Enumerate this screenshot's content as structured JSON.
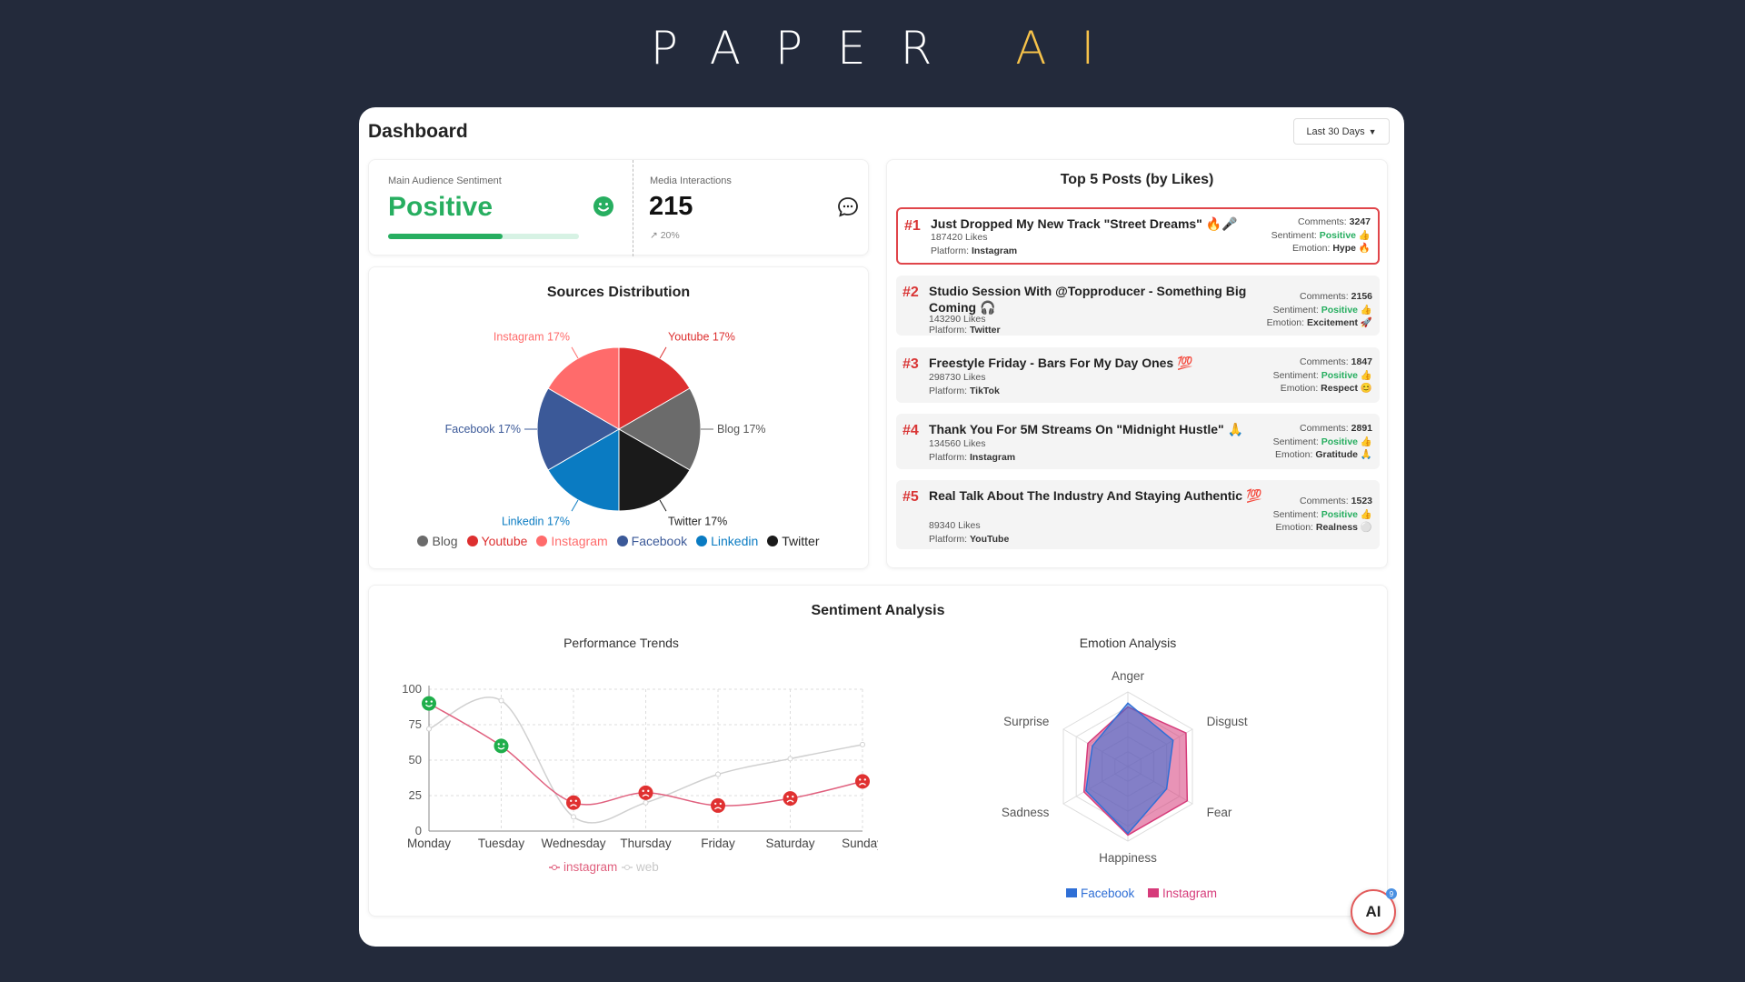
{
  "brand": {
    "name": "PAPER",
    "accent": "AI",
    "accent_color": "#f6c24a"
  },
  "header": {
    "title": "Dashboard",
    "date_range": "Last 30 Days"
  },
  "stats": {
    "sentiment": {
      "label": "Main Audience Sentiment",
      "value": "Positive",
      "icon": "smile-icon",
      "progress": 0.6
    },
    "interactions": {
      "label": "Media Interactions",
      "value": "215",
      "trend": "↗ 20%",
      "icon": "chat-icon"
    }
  },
  "sources": {
    "title": "Sources Distribution",
    "chart_data": {
      "type": "pie",
      "categories": [
        "Blog",
        "Youtube",
        "Instagram",
        "Facebook",
        "Linkedin",
        "Twitter"
      ],
      "values": [
        17,
        17,
        17,
        17,
        17,
        17
      ],
      "slice_labels": [
        "Blog 17%",
        "Youtube 17%",
        "Instagram 17%",
        "Facebook 17%",
        "Linkedin 17%",
        "Twitter 17%"
      ],
      "colors": [
        "#6b6b6b",
        "#dd2f2f",
        "#ff6b6b",
        "#3b5998",
        "#0a7bc2",
        "#1a1a1a"
      ],
      "legend": "bottom"
    }
  },
  "top_posts": {
    "title": "Top 5 Posts (by Likes)",
    "posts": [
      {
        "rank": "#1",
        "title": "Just Dropped My New Track \"Street Dreams\" 🔥🎤",
        "likes": "187420 Likes",
        "platform_label": "Platform:",
        "platform": "Instagram",
        "comments_label": "Comments:",
        "comments": "3247",
        "sentiment_label": "Sentiment:",
        "sentiment": "Positive 👍",
        "emotion_label": "Emotion:",
        "emotion": "Hype 🔥"
      },
      {
        "rank": "#2",
        "title": "Studio Session With @Topproducer - Something Big Coming 🎧",
        "likes": "143290 Likes",
        "platform_label": "Platform:",
        "platform": "Twitter",
        "comments_label": "Comments:",
        "comments": "2156",
        "sentiment_label": "Sentiment:",
        "sentiment": "Positive 👍",
        "emotion_label": "Emotion:",
        "emotion": "Excitement 🚀"
      },
      {
        "rank": "#3",
        "title": "Freestyle Friday - Bars For My Day Ones 💯",
        "likes": "298730 Likes",
        "platform_label": "Platform:",
        "platform": "TikTok",
        "comments_label": "Comments:",
        "comments": "1847",
        "sentiment_label": "Sentiment:",
        "sentiment": "Positive 👍",
        "emotion_label": "Emotion:",
        "emotion": "Respect 😊"
      },
      {
        "rank": "#4",
        "title": "Thank You For 5M Streams On \"Midnight Hustle\" 🙏",
        "likes": "134560 Likes",
        "platform_label": "Platform:",
        "platform": "Instagram",
        "comments_label": "Comments:",
        "comments": "2891",
        "sentiment_label": "Sentiment:",
        "sentiment": "Positive 👍",
        "emotion_label": "Emotion:",
        "emotion": "Gratitude 🙏"
      },
      {
        "rank": "#5",
        "title": "Real Talk About The Industry And Staying Authentic 💯",
        "likes": "89340 Likes",
        "platform_label": "Platform:",
        "platform": "YouTube",
        "comments_label": "Comments:",
        "comments": "1523",
        "sentiment_label": "Sentiment:",
        "sentiment": "Positive 👍",
        "emotion_label": "Emotion:",
        "emotion": "Realness ⚪"
      }
    ]
  },
  "analysis": {
    "title": "Sentiment Analysis",
    "performance": {
      "title": "Performance Trends",
      "chart_data": {
        "type": "line",
        "x": [
          "Monday",
          "Tuesday",
          "Wednesday",
          "Thursday",
          "Friday",
          "Saturday",
          "Sunday"
        ],
        "series": [
          {
            "name": "instagram",
            "values": [
              90,
              60,
              20,
              27,
              18,
              23,
              35
            ],
            "color": "#e0607e"
          },
          {
            "name": "web",
            "values": [
              72,
              92,
              10,
              20,
              40,
              51,
              61
            ],
            "color": "#d0d0d0"
          }
        ],
        "ylim": [
          0,
          100
        ],
        "yticks": [
          0,
          25,
          50,
          75,
          100
        ],
        "grid": true,
        "legend": "bottom"
      }
    },
    "emotion": {
      "title": "Emotion Analysis",
      "chart_data": {
        "type": "radar",
        "axes": [
          "Anger",
          "Disgust",
          "Fear",
          "Happiness",
          "Sadness",
          "Surprise"
        ],
        "series": [
          {
            "name": "Facebook",
            "values": [
              85,
              70,
              60,
              90,
              65,
              55
            ],
            "color": "#2f6fd6"
          },
          {
            "name": "Instagram",
            "values": [
              80,
              90,
              92,
              92,
              68,
              62
            ],
            "color": "#d63b7a"
          }
        ],
        "max": 100,
        "legend": "bottom"
      }
    }
  },
  "assistant": {
    "label": "AI",
    "badge": "9"
  }
}
